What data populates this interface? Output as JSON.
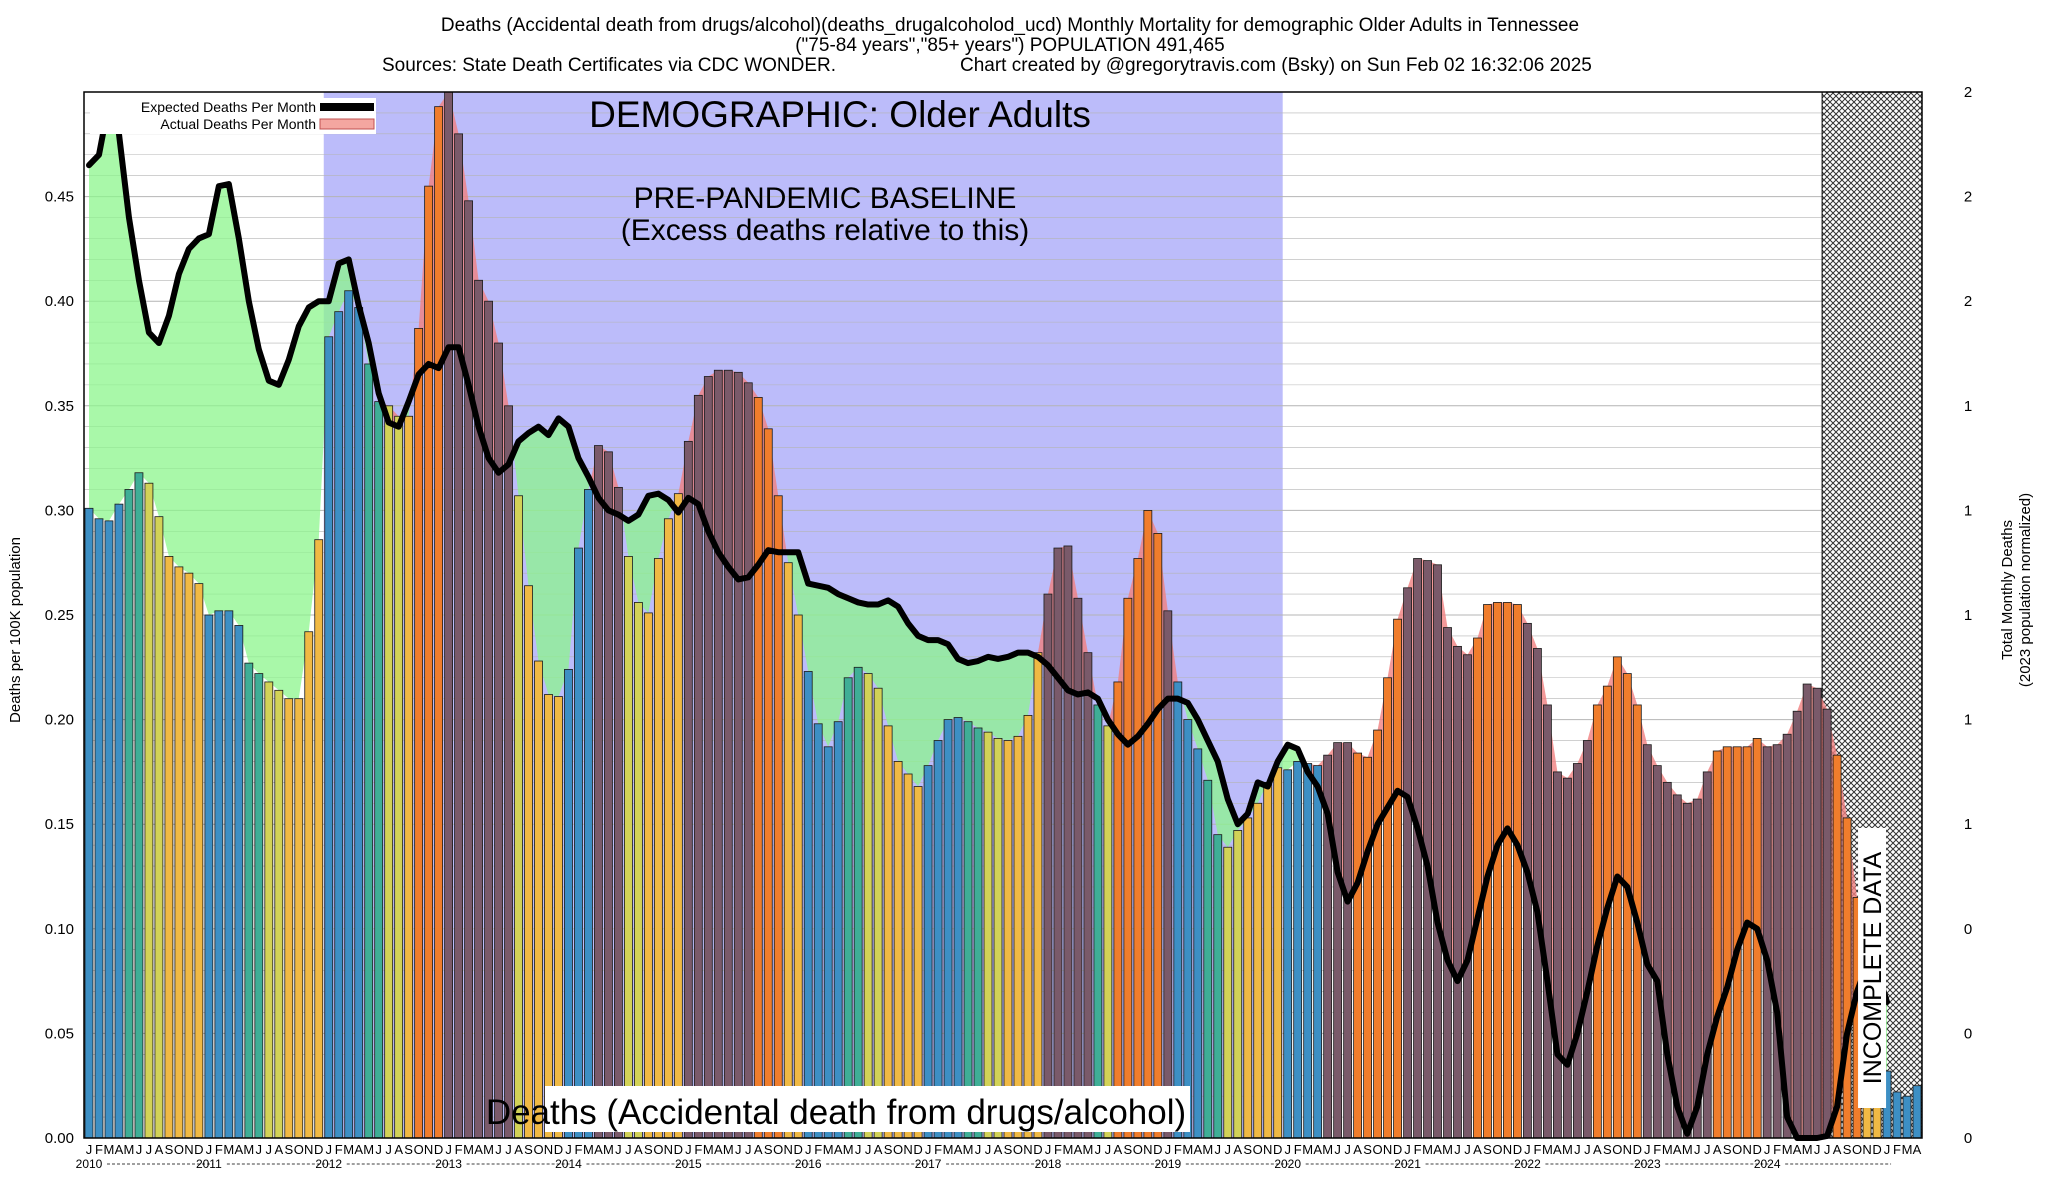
{
  "header": {
    "line1": "Deaths (Accidental death from drugs/alcohol)(deaths_drugalcoholod_ucd) Monthly Mortality for demographic Older Adults in Tennessee",
    "line2": "(\"75-84 years\",\"85+ years\") POPULATION 491,465",
    "line3_left": "Sources: State Death Certificates via CDC WONDER.",
    "line3_right": "Chart created by @gregorytravis.com (Bsky) on Sun Feb 02 16:32:06 2025"
  },
  "annotations": {
    "demographic": "DEMOGRAPHIC: Older Adults",
    "baseline_line1": "PRE-PANDEMIC BASELINE",
    "baseline_line2": "(Excess deaths relative to this)",
    "bottom_label": "Deaths (Accidental death from drugs/alcohol)",
    "incomplete": "INCOMPLETE DATA"
  },
  "legend": {
    "expected": "Expected Deaths Per Month",
    "actual": "Actual Deaths Per Month"
  },
  "colors": {
    "baseline_band": "#bcbcfa",
    "expected_line": "#000000",
    "excess_fill": "#f08080",
    "deficit_fill": "#8cf58c",
    "bar_palette": [
      "#3d8fc4",
      "#3fae96",
      "#d2d257",
      "#f0b944",
      "#f07d2c",
      "#7a5a6a"
    ]
  },
  "chart_data": {
    "type": "bar",
    "ylabel_left": "Deaths per 100K population",
    "ylabel_right_line1": "Total Monthly Deaths",
    "ylabel_right_line2": "(2023 population normalized)",
    "ylim": [
      0,
      0.5
    ],
    "y_ticks": [
      "0.00",
      "0.05",
      "0.10",
      "0.15",
      "0.20",
      "0.25",
      "0.30",
      "0.35",
      "0.40",
      "0.45"
    ],
    "right_ticks": [
      "0",
      "0",
      "0",
      "1",
      "1",
      "1",
      "1",
      "1",
      "2",
      "2",
      "2"
    ],
    "month_letters": [
      "J",
      "F",
      "M",
      "A",
      "M",
      "J",
      "J",
      "A",
      "S",
      "O",
      "N",
      "D"
    ],
    "years": [
      "2010",
      "2011",
      "2012",
      "2013",
      "2014",
      "2015",
      "2016",
      "2017",
      "2018",
      "2019",
      "2020",
      "2021",
      "2022",
      "2023",
      "2024"
    ],
    "start": "2010-01",
    "baseline_start": "2012-01",
    "baseline_end": "2019-12",
    "incomplete_start": "2024-07",
    "series": [
      {
        "name": "Actual Deaths Per Month",
        "values": [
          0.301,
          0.296,
          0.295,
          0.303,
          0.31,
          0.318,
          0.313,
          0.297,
          0.278,
          0.273,
          0.27,
          0.265,
          0.25,
          0.252,
          0.252,
          0.245,
          0.227,
          0.222,
          0.218,
          0.214,
          0.21,
          0.21,
          0.242,
          0.286,
          0.383,
          0.395,
          0.405,
          0.397,
          0.37,
          0.352,
          0.35,
          0.345,
          0.345,
          0.387,
          0.455,
          0.493,
          0.5,
          0.48,
          0.448,
          0.41,
          0.4,
          0.38,
          0.35,
          0.307,
          0.264,
          0.228,
          0.212,
          0.211,
          0.224,
          0.282,
          0.31,
          0.331,
          0.328,
          0.311,
          0.278,
          0.256,
          0.251,
          0.277,
          0.296,
          0.308,
          0.333,
          0.355,
          0.364,
          0.367,
          0.367,
          0.366,
          0.361,
          0.354,
          0.339,
          0.307,
          0.275,
          0.25,
          0.223,
          0.198,
          0.187,
          0.199,
          0.22,
          0.225,
          0.222,
          0.215,
          0.197,
          0.18,
          0.174,
          0.168,
          0.178,
          0.19,
          0.2,
          0.201,
          0.199,
          0.196,
          0.194,
          0.191,
          0.19,
          0.192,
          0.202,
          0.232,
          0.26,
          0.282,
          0.283,
          0.258,
          0.232,
          0.207,
          0.197,
          0.218,
          0.258,
          0.277,
          0.3,
          0.289,
          0.252,
          0.218,
          0.2,
          0.186,
          0.171,
          0.145,
          0.139,
          0.147,
          0.153,
          0.16,
          0.17,
          0.177,
          0.176,
          0.18,
          0.179,
          0.178,
          0.183,
          0.189,
          0.189,
          0.184,
          0.182,
          0.195,
          0.22,
          0.248,
          0.263,
          0.277,
          0.276,
          0.274,
          0.244,
          0.235,
          0.231,
          0.239,
          0.255,
          0.256,
          0.256,
          0.255,
          0.246,
          0.234,
          0.207,
          0.175,
          0.172,
          0.179,
          0.19,
          0.207,
          0.216,
          0.23,
          0.222,
          0.207,
          0.188,
          0.178,
          0.17,
          0.164,
          0.16,
          0.162,
          0.175,
          0.185,
          0.187,
          0.187,
          0.187,
          0.191,
          0.187,
          0.188,
          0.193,
          0.204,
          0.217,
          0.215,
          0.205,
          0.183,
          0.153,
          0.115,
          0.082,
          0.048,
          0.032,
          0.022,
          0.02,
          0.025
        ]
      },
      {
        "name": "Expected Deaths Per Month",
        "values": [
          0.465,
          0.47,
          0.495,
          0.48,
          0.44,
          0.41,
          0.385,
          0.38,
          0.393,
          0.413,
          0.425,
          0.43,
          0.432,
          0.455,
          0.456,
          0.43,
          0.4,
          0.377,
          0.362,
          0.36,
          0.372,
          0.388,
          0.397,
          0.4,
          0.4,
          0.418,
          0.42,
          0.398,
          0.38,
          0.356,
          0.342,
          0.34,
          0.352,
          0.365,
          0.37,
          0.368,
          0.378,
          0.378,
          0.36,
          0.34,
          0.325,
          0.318,
          0.322,
          0.333,
          0.337,
          0.34,
          0.336,
          0.344,
          0.34,
          0.325,
          0.316,
          0.306,
          0.3,
          0.298,
          0.295,
          0.298,
          0.307,
          0.308,
          0.305,
          0.299,
          0.306,
          0.303,
          0.29,
          0.28,
          0.273,
          0.267,
          0.268,
          0.274,
          0.281,
          0.28,
          0.28,
          0.28,
          0.265,
          0.264,
          0.263,
          0.26,
          0.258,
          0.256,
          0.255,
          0.255,
          0.257,
          0.254,
          0.246,
          0.24,
          0.238,
          0.238,
          0.236,
          0.229,
          0.227,
          0.228,
          0.23,
          0.229,
          0.23,
          0.232,
          0.232,
          0.23,
          0.226,
          0.22,
          0.214,
          0.212,
          0.213,
          0.21,
          0.2,
          0.193,
          0.188,
          0.192,
          0.198,
          0.205,
          0.21,
          0.21,
          0.208,
          0.2,
          0.19,
          0.18,
          0.162,
          0.15,
          0.155,
          0.17,
          0.168,
          0.18,
          0.188,
          0.186,
          0.175,
          0.168,
          0.155,
          0.127,
          0.113,
          0.122,
          0.137,
          0.15,
          0.158,
          0.166,
          0.163,
          0.148,
          0.13,
          0.103,
          0.085,
          0.075,
          0.085,
          0.105,
          0.125,
          0.14,
          0.148,
          0.14,
          0.127,
          0.108,
          0.075,
          0.04,
          0.035,
          0.05,
          0.07,
          0.092,
          0.11,
          0.125,
          0.12,
          0.103,
          0.083,
          0.075,
          0.04,
          0.015,
          0.002,
          0.015,
          0.04,
          0.058,
          0.072,
          0.09,
          0.103,
          0.1,
          0.085,
          0.06,
          0.01,
          0.0,
          0.0,
          0.0,
          0.001,
          0.015,
          0.05,
          0.07,
          0.083,
          0.08,
          0.065
        ]
      }
    ]
  }
}
